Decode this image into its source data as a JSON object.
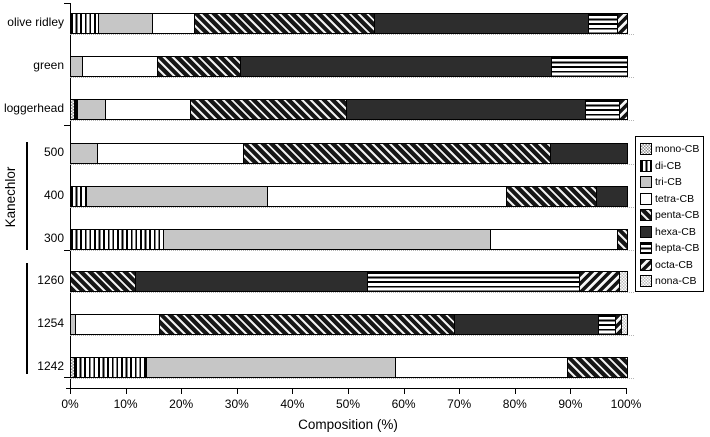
{
  "figure": {
    "group_label": "Kanechlor"
  },
  "chart_data": {
    "type": "bar",
    "orientation": "horizontal",
    "stacked": true,
    "unit": "percent",
    "title": "",
    "xlabel": "Composition (%)",
    "ylabel": "",
    "xlim": [
      0,
      100
    ],
    "grid": false,
    "legend_position": "right",
    "x_ticks": [
      "0%",
      "10%",
      "20%",
      "30%",
      "40%",
      "50%",
      "60%",
      "70%",
      "80%",
      "90%",
      "100%"
    ],
    "categories": [
      "olive ridley",
      "green",
      "loggerhead",
      "500",
      "400",
      "300",
      "1260",
      "1254",
      "1242"
    ],
    "category_groups": [
      {
        "label": "",
        "categories": [
          "olive ridley",
          "green",
          "loggerhead"
        ]
      },
      {
        "label": "Kanechlor",
        "categories": [
          "500",
          "400",
          "300"
        ]
      },
      {
        "label": "",
        "categories": [
          "1260",
          "1254",
          "1242"
        ]
      }
    ],
    "series": [
      {
        "name": "mono-CB",
        "pattern": "light-checker",
        "values": [
          0,
          0,
          0.6,
          0,
          0,
          0,
          0,
          0,
          0.5
        ]
      },
      {
        "name": "di-CB",
        "pattern": "vertical-stripes",
        "values": [
          4.8,
          0,
          0.5,
          0,
          2.7,
          16.5,
          0,
          0,
          13.0
        ]
      },
      {
        "name": "tri-CB",
        "pattern": "solid-gray",
        "values": [
          9.8,
          2.0,
          5.1,
          4.7,
          32.5,
          58.8,
          0,
          0.7,
          44.7
        ]
      },
      {
        "name": "tetra-CB",
        "pattern": "solid-white",
        "values": [
          7.5,
          13.5,
          15.2,
          26.3,
          43.1,
          22.9,
          0,
          15.2,
          31.1
        ]
      },
      {
        "name": "penta-CB",
        "pattern": "backslash-hatch",
        "values": [
          32.4,
          14.9,
          28.1,
          55.1,
          16.1,
          1.8,
          11.5,
          53.0,
          10.7
        ]
      },
      {
        "name": "hexa-CB",
        "pattern": "solid-black",
        "values": [
          38.4,
          56.0,
          43.0,
          13.9,
          5.6,
          0,
          41.8,
          25.9,
          0
        ]
      },
      {
        "name": "hepta-CB",
        "pattern": "horizontal-stripes",
        "values": [
          5.3,
          13.6,
          6.0,
          0,
          0,
          0,
          38.1,
          3.0,
          0
        ]
      },
      {
        "name": "octa-CB",
        "pattern": "forwardslash-hatch",
        "values": [
          1.8,
          0,
          1.5,
          0,
          0,
          0,
          7.1,
          1.2,
          0
        ]
      },
      {
        "name": "nona-CB",
        "pattern": "light-dots",
        "values": [
          0,
          0,
          0,
          0,
          0,
          0,
          1.5,
          1.0,
          0
        ]
      }
    ]
  },
  "colors": {
    "background": "#ffffff",
    "axis": "#000000",
    "bar_black": "#2d2d2d",
    "bar_gray": "#c6c6c6",
    "grid_dotted": "#b5b5b5"
  }
}
